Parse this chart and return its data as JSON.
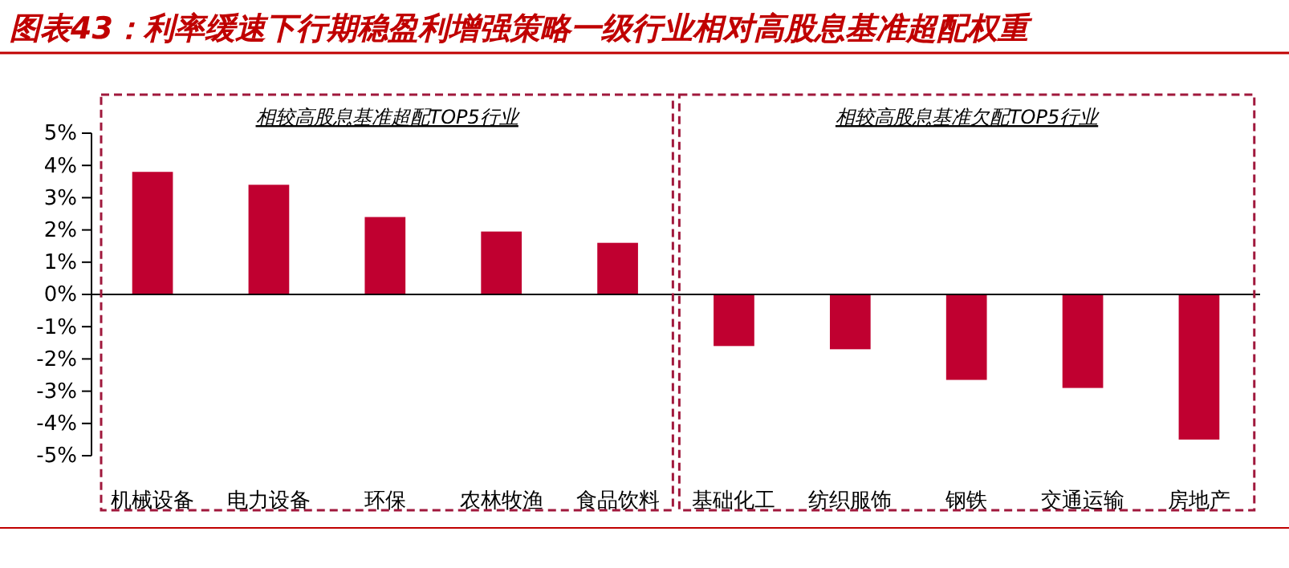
{
  "chart_data": {
    "type": "bar",
    "title": "图表43：利率缓速下行期稳盈利增强策略一级行业相对高股息基准超配权重",
    "categories": [
      "机械设备",
      "电力设备",
      "环保",
      "农林牧渔",
      "食品饮料",
      "基础化工",
      "纺织服饰",
      "钢铁",
      "交通运输",
      "房地产"
    ],
    "values": [
      3.8,
      3.4,
      2.4,
      1.95,
      1.6,
      -1.6,
      -1.7,
      -2.65,
      -2.9,
      -4.5
    ],
    "color": "#c00030",
    "ylim": [
      -5,
      5
    ],
    "yticks": [
      {
        "value": 5,
        "label": "5%"
      },
      {
        "value": 4,
        "label": "4%"
      },
      {
        "value": 3,
        "label": "3%"
      },
      {
        "value": 2,
        "label": "2%"
      },
      {
        "value": 1,
        "label": "1%"
      },
      {
        "value": 0,
        "label": "0%"
      },
      {
        "value": -1,
        "label": "-1%"
      },
      {
        "value": -2,
        "label": "-2%"
      },
      {
        "value": -3,
        "label": "-3%"
      },
      {
        "value": -4,
        "label": "-4%"
      },
      {
        "value": -5,
        "label": "-5%"
      }
    ],
    "annotations": [
      "相较高股息基准超配TOP5行业",
      "相较高股息基准欠配TOP5行业"
    ]
  }
}
